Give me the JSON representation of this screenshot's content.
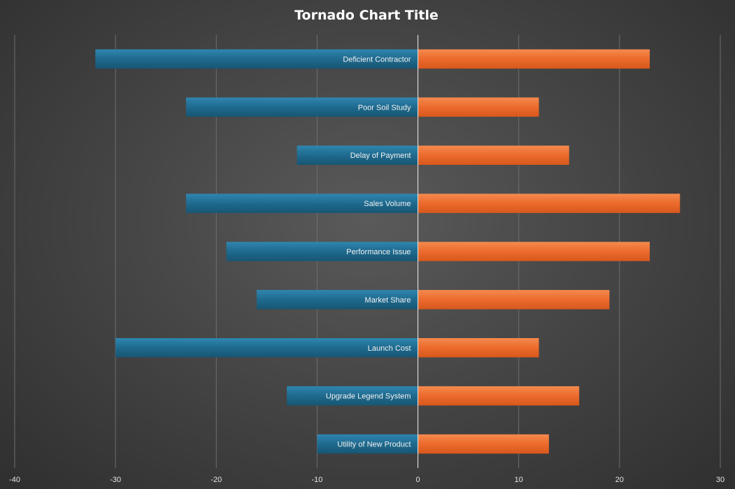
{
  "chart_data": {
    "type": "bar",
    "orientation": "horizontal",
    "style": "tornado",
    "title": "Tornado Chart Title",
    "categories": [
      "Deficient Contractor",
      "Poor Soil Study",
      "Delay of Payment",
      "Sales Volume",
      "Performance Issue",
      "Market Share",
      "Launch Cost",
      "Upgrade Legend System",
      "Utility of New Product"
    ],
    "series": [
      {
        "color": "#1f6a8e",
        "values": [
          -32,
          -23,
          -12,
          -23,
          -19,
          -16,
          -30,
          -13,
          -10
        ]
      },
      {
        "color": "#ec6a2c",
        "values": [
          23,
          12,
          15,
          26,
          23,
          19,
          12,
          16,
          13
        ]
      }
    ],
    "xlim": [
      -40,
      30
    ],
    "xticks": [
      -40,
      -30,
      -20,
      -10,
      0,
      10,
      20,
      30
    ],
    "grid": true,
    "legend": "none"
  }
}
